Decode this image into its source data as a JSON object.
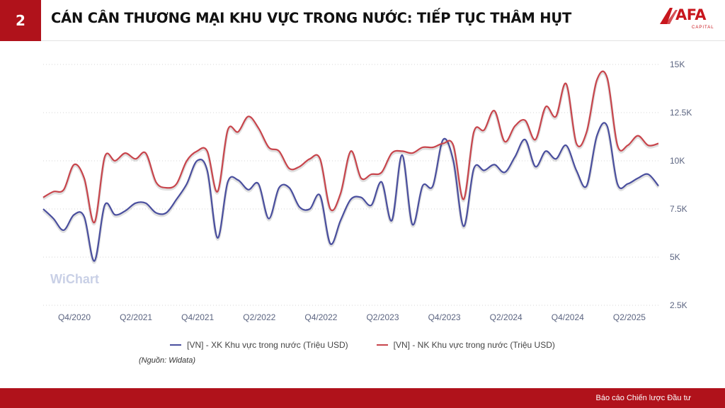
{
  "header": {
    "section_number": "2",
    "title": "CÁN CÂN THƯƠNG MẠI KHU VỰC TRONG NƯỚC: TIẾP TỤC THÂM HỤT",
    "logo_text": "AFA",
    "logo_sub": "CAPITAL"
  },
  "watermark": "WiChart",
  "source": "(Nguồn: Widata)",
  "footer": {
    "text": "Báo cáo Chiến lược Đầu tư"
  },
  "colors": {
    "brand_red": "#b0121b",
    "export_series": "#4a4f9e",
    "import_series": "#c8454c"
  },
  "chart_data": {
    "type": "line",
    "x_axis_labels": [
      "Q4/2020",
      "Q2/2021",
      "Q4/2021",
      "Q2/2022",
      "Q4/2022",
      "Q2/2023",
      "Q4/2023",
      "Q2/2024",
      "Q4/2024",
      "Q2/2025"
    ],
    "y_axis_labels": [
      "2.5K",
      "5K",
      "7.5K",
      "10K",
      "12.5K",
      "15K"
    ],
    "y_ticks": [
      2500,
      5000,
      7500,
      10000,
      12500,
      15000
    ],
    "ylim": [
      2500,
      15000
    ],
    "y_axis_position": "right",
    "grid": "horizontal-dotted",
    "legend_position": "bottom",
    "series": [
      {
        "name": "[VN] - XK Khu vực trong nước (Triệu USD)",
        "color": "#4a4f9e",
        "values": [
          7500,
          7000,
          6400,
          7200,
          7100,
          4800,
          7700,
          7200,
          7400,
          7800,
          7800,
          7300,
          7300,
          8000,
          8800,
          10000,
          9500,
          6000,
          8900,
          9000,
          8500,
          8800,
          7000,
          8600,
          8600,
          7600,
          7500,
          8200,
          5700,
          6900,
          8000,
          8100,
          7700,
          8900,
          6900,
          10300,
          6700,
          8700,
          8700,
          11100,
          10000,
          6600,
          9600,
          9500,
          9800,
          9400,
          10200,
          11100,
          9700,
          10500,
          10100,
          10800,
          9500,
          8700,
          11300,
          11800,
          8800,
          8800,
          9100,
          9300,
          8700
        ]
      },
      {
        "name": "[VN] - NK Khu vực trong nước (Triệu USD)",
        "color": "#c8454c",
        "values": [
          8100,
          8400,
          8500,
          9800,
          9100,
          6800,
          10200,
          10000,
          10400,
          10100,
          10400,
          8900,
          8600,
          8800,
          10000,
          10500,
          10500,
          8400,
          11600,
          11500,
          12300,
          11700,
          10700,
          10500,
          9600,
          9700,
          10100,
          10100,
          7500,
          8300,
          10500,
          9100,
          9300,
          9400,
          10400,
          10500,
          10400,
          10700,
          10700,
          10900,
          10800,
          8000,
          11500,
          11600,
          12600,
          11000,
          11800,
          12100,
          11100,
          12800,
          12300,
          14000,
          10900,
          11500,
          14200,
          14300,
          10800,
          10800,
          11300,
          10800,
          10900
        ]
      }
    ]
  }
}
